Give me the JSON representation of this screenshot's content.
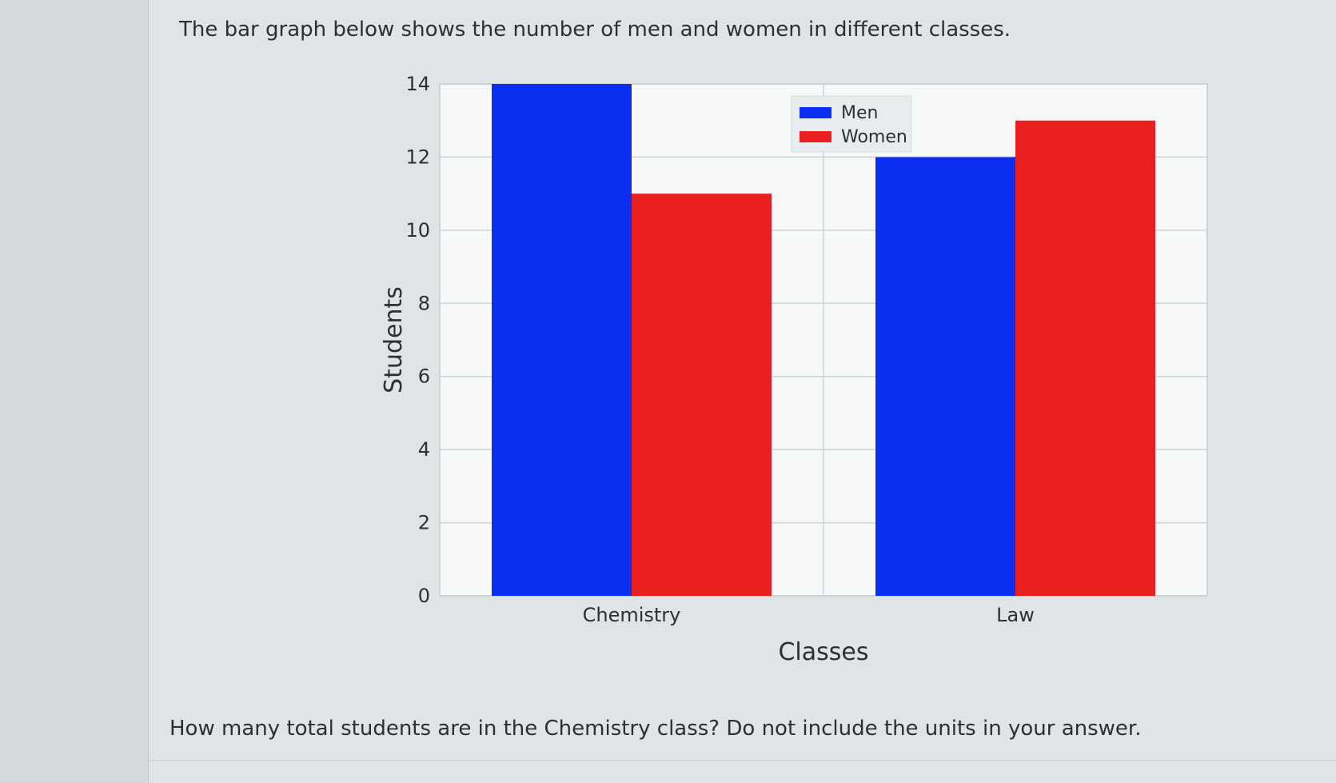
{
  "prompt": "The bar graph below shows the number of men and women in different classes.",
  "question": "How many total students are in the Chemistry class? Do not include the units in your answer.",
  "chart_data": {
    "type": "bar",
    "categories": [
      "Chemistry",
      "Law"
    ],
    "series": [
      {
        "name": "Men",
        "values": [
          14,
          12
        ],
        "color": "#0a2ff0"
      },
      {
        "name": "Women",
        "values": [
          11,
          13
        ],
        "color": "#ea2020"
      }
    ],
    "xlabel": "Classes",
    "ylabel": "Students",
    "ylim": [
      0,
      14
    ],
    "yticks": [
      0,
      2,
      4,
      6,
      8,
      10,
      12,
      14
    ],
    "grid": true,
    "legend_position": "top-right"
  }
}
